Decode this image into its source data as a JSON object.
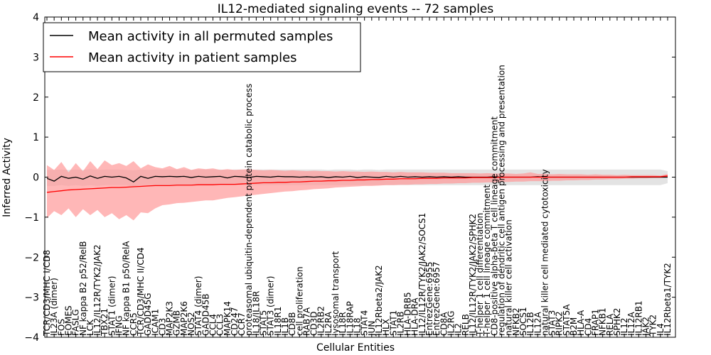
{
  "chart_data": {
    "type": "line",
    "title": "IL12-mediated signaling events -- 72 samples",
    "xlabel": "Cellular Entities",
    "ylabel": "Inferred Activity",
    "ylim": [
      -4,
      4
    ],
    "yticks": [
      -4,
      -3,
      -2,
      -1,
      0,
      1,
      2,
      3,
      4
    ],
    "legend_position": "top-left",
    "colors": {
      "permuted_line": "#000000",
      "permuted_band": "#d9d9d9",
      "patient_line": "#ff0000",
      "patient_band": "#ff9999"
    },
    "categories": [
      "TCR/CD3/MHC I/CD8",
      "IL23A (dimer)",
      "FOS",
      "EOMES",
      "FASLG",
      "NF kappa B2 p52/RelB",
      "LCK",
      "IL12/IL12R/TYK2/JAK2",
      "TBX21",
      "STAT1 (dimer)",
      "IFNG",
      "NF kappa B1 p50/RelA",
      "CCR5",
      "TCR/CD3/MHC II/CD4",
      "GADD45G",
      "ICAM1",
      "CD3",
      "MAP2K3",
      "GZMB",
      "MAP2K6",
      "NOS2",
      "STAT4 (dimer)",
      "GADD45B",
      "CCL4",
      "CCL3",
      "MAPK14",
      "CD247",
      "CCR7",
      "proteasomal ubiquitin-dependent protein catabolic process",
      "IL18/IL18R",
      "STAT5",
      "STAT3 (dimer)",
      "IL18R1",
      "IL1B",
      "CD8B",
      "cell proliferation",
      "RAB7A",
      "CD3D",
      "IL2RB2",
      "IL2RA",
      "lysosomal transport",
      "IL18R",
      "IL18RAP",
      "IL18",
      "STAT4",
      "JUN",
      "IL12Rbeta2/JAK2",
      "HLX",
      "STAT1",
      "IL2RB",
      "HLA-DRB5",
      "HLA-DRA",
      "IL12/IL12R/TYK2/JAK2/SOCS1",
      "EntrezGene:6955",
      "EntrezGene:6957",
      "CD8A",
      "IL2RG",
      "IL2",
      "RELB",
      "IL12/IL12R/TYK2/JAK2/SPHK2",
      "T-helper 1 cell differentiation",
      "T-helper 1 cell lineage commitment",
      "CD8-positive alpha-beta T cell lineage commitment",
      "regulation of dendritic cell antigen processing and presentation",
      "natural killer cell activation",
      "NFKB2",
      "SOCS1",
      "IL12B",
      "IL12A",
      "natural killer cell mediated cytotoxicity",
      "STAT3",
      "RIPK2",
      "STAT5A",
      "B2M",
      "HLA-A",
      "CD4",
      "FRAP1",
      "NFKB1",
      "RELA",
      "SPHK2",
      "IL12",
      "IL12A",
      "IL12RB1",
      "JAK2",
      "TYK2",
      "IL4",
      "IL12Rbeta1/TYK2"
    ],
    "series": [
      {
        "name": "Mean activity in all permuted samples",
        "values": [
          -0.03,
          -0.1,
          0.02,
          -0.03,
          0.0,
          -0.05,
          0.03,
          -0.03,
          0.02,
          0.0,
          0.02,
          -0.02,
          -0.12,
          0.02,
          -0.03,
          0.02,
          0.01,
          0.02,
          0.01,
          0.02,
          -0.01,
          0.02,
          0.0,
          0.01,
          0.02,
          -0.02,
          0.02,
          0.01,
          -0.01,
          0.02,
          0.01,
          0.0,
          0.02,
          0.01,
          0.01,
          0.0,
          0.01,
          0.0,
          0.01,
          -0.01,
          0.01,
          0.0,
          0.02,
          -0.01,
          0.01,
          0.0,
          -0.01,
          0.02,
          0.0,
          0.02,
          0.0,
          0.01,
          0.0,
          0.01,
          0.0,
          0.01,
          0.0,
          0.01,
          0.0,
          0.0,
          0.0,
          0.0,
          0.01,
          0.0,
          0.0,
          0.0,
          0.0,
          0.0,
          0.01,
          0.0,
          0.0,
          0.0,
          0.0,
          0.0,
          0.0,
          0.0,
          0.0,
          0.0,
          0.0,
          0.0,
          0.0,
          0.0,
          0.0,
          0.0,
          0.0,
          0.0,
          0.0
        ],
        "lower": [
          -0.22,
          -0.22,
          -0.2,
          -0.22,
          -0.2,
          -0.22,
          -0.2,
          -0.22,
          -0.2,
          -0.2,
          -0.2,
          -0.2,
          -0.24,
          -0.2,
          -0.2,
          -0.2,
          -0.2,
          -0.2,
          -0.2,
          -0.2,
          -0.2,
          -0.2,
          -0.2,
          -0.2,
          -0.2,
          -0.2,
          -0.2,
          -0.2,
          -0.2,
          -0.2,
          -0.2,
          -0.2,
          -0.2,
          -0.2,
          -0.2,
          -0.2,
          -0.2,
          -0.2,
          -0.2,
          -0.2,
          -0.2,
          -0.2,
          -0.2,
          -0.2,
          -0.2,
          -0.2,
          -0.2,
          -0.2,
          -0.2,
          -0.2,
          -0.2,
          -0.2,
          -0.2,
          -0.2,
          -0.2,
          -0.2,
          -0.2,
          -0.2,
          -0.2,
          -0.2,
          -0.2,
          -0.2,
          -0.2,
          -0.2,
          -0.2,
          -0.2,
          -0.2,
          -0.2,
          -0.2,
          -0.2,
          -0.2,
          -0.2,
          -0.2,
          -0.2,
          -0.2,
          -0.2,
          -0.2,
          -0.2,
          -0.2,
          -0.2,
          -0.2,
          -0.2,
          -0.2,
          -0.2,
          -0.2,
          -0.2,
          -0.15
        ],
        "upper": [
          0.18,
          0.18,
          0.19,
          0.18,
          0.19,
          0.18,
          0.2,
          0.18,
          0.19,
          0.19,
          0.19,
          0.18,
          0.17,
          0.19,
          0.18,
          0.19,
          0.19,
          0.19,
          0.19,
          0.19,
          0.18,
          0.19,
          0.19,
          0.19,
          0.19,
          0.18,
          0.19,
          0.19,
          0.18,
          0.19,
          0.19,
          0.19,
          0.19,
          0.19,
          0.19,
          0.19,
          0.19,
          0.19,
          0.19,
          0.18,
          0.19,
          0.19,
          0.19,
          0.18,
          0.19,
          0.19,
          0.18,
          0.19,
          0.19,
          0.19,
          0.19,
          0.19,
          0.19,
          0.19,
          0.19,
          0.19,
          0.19,
          0.19,
          0.19,
          0.19,
          0.19,
          0.19,
          0.19,
          0.19,
          0.19,
          0.19,
          0.19,
          0.19,
          0.19,
          0.19,
          0.19,
          0.19,
          0.19,
          0.19,
          0.19,
          0.19,
          0.19,
          0.19,
          0.19,
          0.19,
          0.19,
          0.19,
          0.19,
          0.19,
          0.19,
          0.19,
          0.15
        ]
      },
      {
        "name": "Mean activity in patient samples",
        "values": [
          -0.38,
          -0.36,
          -0.34,
          -0.32,
          -0.31,
          -0.3,
          -0.29,
          -0.28,
          -0.27,
          -0.26,
          -0.26,
          -0.25,
          -0.24,
          -0.23,
          -0.22,
          -0.21,
          -0.21,
          -0.21,
          -0.2,
          -0.2,
          -0.2,
          -0.19,
          -0.19,
          -0.19,
          -0.18,
          -0.18,
          -0.18,
          -0.17,
          -0.16,
          -0.15,
          -0.14,
          -0.14,
          -0.13,
          -0.13,
          -0.12,
          -0.12,
          -0.11,
          -0.1,
          -0.1,
          -0.09,
          -0.09,
          -0.08,
          -0.08,
          -0.07,
          -0.07,
          -0.06,
          -0.06,
          -0.05,
          -0.05,
          -0.04,
          -0.04,
          -0.04,
          -0.03,
          -0.03,
          -0.03,
          -0.02,
          -0.02,
          -0.02,
          -0.02,
          -0.01,
          -0.01,
          -0.01,
          -0.01,
          0.0,
          0.0,
          0.0,
          0.0,
          0.0,
          0.0,
          0.0,
          0.0,
          0.0,
          0.0,
          0.0,
          0.0,
          0.0,
          0.0,
          0.0,
          0.0,
          0.0,
          0.0,
          0.01,
          0.01,
          0.01,
          0.01,
          0.01,
          0.03
        ],
        "lower": [
          -1.02,
          -0.85,
          -0.95,
          -0.78,
          -1.0,
          -0.8,
          -0.95,
          -0.82,
          -1.0,
          -0.9,
          -1.05,
          -0.95,
          -1.08,
          -0.88,
          -0.9,
          -0.78,
          -0.7,
          -0.68,
          -0.65,
          -0.64,
          -0.62,
          -0.6,
          -0.58,
          -0.58,
          -0.55,
          -0.52,
          -0.5,
          -0.48,
          -0.46,
          -0.44,
          -0.42,
          -0.4,
          -0.38,
          -0.36,
          -0.35,
          -0.33,
          -0.32,
          -0.3,
          -0.29,
          -0.28,
          -0.26,
          -0.25,
          -0.24,
          -0.23,
          -0.22,
          -0.22,
          -0.21,
          -0.2,
          -0.2,
          -0.19,
          -0.19,
          -0.18,
          -0.18,
          -0.17,
          -0.17,
          -0.16,
          -0.16,
          -0.15,
          -0.15,
          -0.14,
          -0.14,
          -0.13,
          -0.13,
          -0.12,
          -0.12,
          -0.11,
          -0.11,
          -0.1,
          -0.1,
          -0.1,
          -0.09,
          -0.09,
          -0.08,
          -0.08,
          -0.07,
          -0.07,
          -0.06,
          -0.06,
          -0.05,
          -0.05,
          -0.04,
          -0.04,
          -0.03,
          -0.03,
          -0.02,
          -0.02,
          -0.01
        ],
        "upper": [
          0.3,
          0.18,
          0.38,
          0.12,
          0.35,
          0.15,
          0.4,
          0.2,
          0.42,
          0.3,
          0.35,
          0.28,
          0.4,
          0.22,
          0.32,
          0.25,
          0.22,
          0.28,
          0.2,
          0.25,
          0.18,
          0.22,
          0.2,
          0.22,
          0.18,
          0.2,
          0.18,
          0.19,
          0.2,
          0.18,
          0.17,
          0.18,
          0.17,
          0.16,
          0.17,
          0.16,
          0.15,
          0.16,
          0.15,
          0.15,
          0.14,
          0.15,
          0.14,
          0.14,
          0.13,
          0.14,
          0.13,
          0.13,
          0.12,
          0.13,
          0.12,
          0.12,
          0.12,
          0.11,
          0.11,
          0.11,
          0.1,
          0.1,
          0.1,
          0.1,
          0.09,
          0.1,
          0.09,
          0.09,
          0.09,
          0.08,
          0.09,
          0.12,
          0.08,
          0.08,
          0.07,
          0.08,
          0.07,
          0.07,
          0.07,
          0.06,
          0.07,
          0.06,
          0.06,
          0.05,
          0.06,
          0.05,
          0.05,
          0.05,
          0.05,
          0.04,
          0.08
        ]
      }
    ]
  }
}
